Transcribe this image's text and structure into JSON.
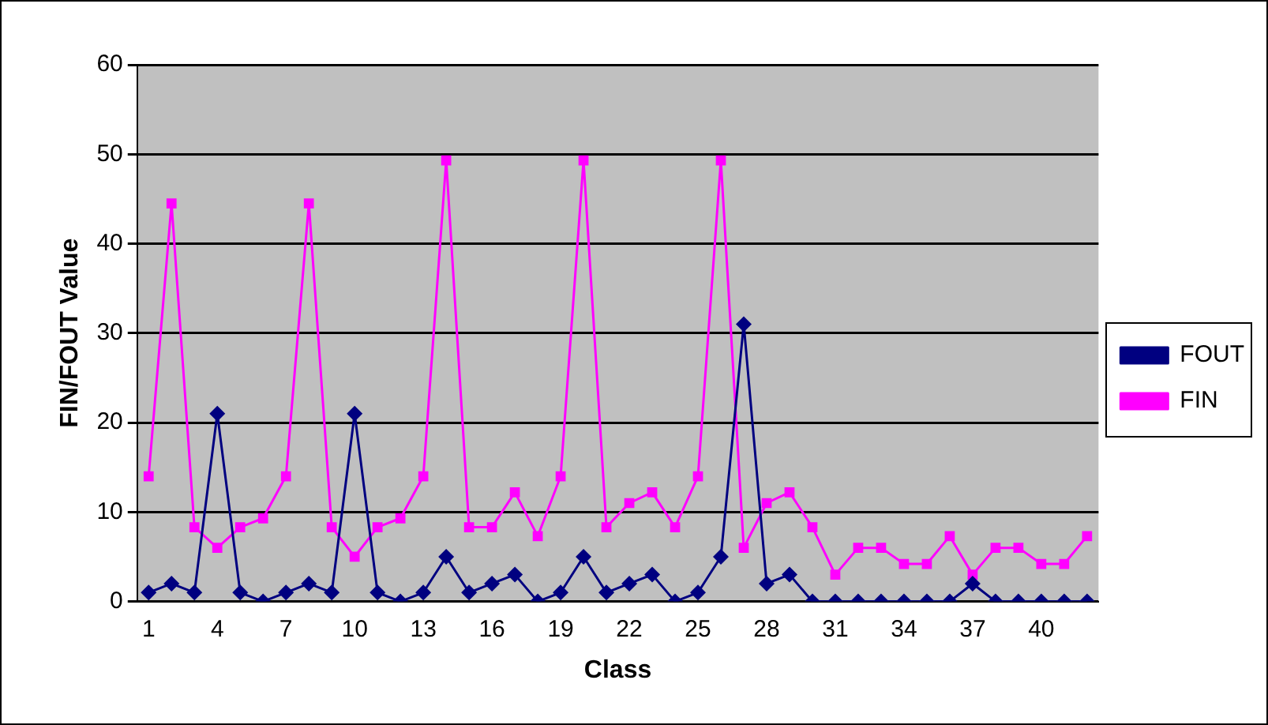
{
  "chart_data": {
    "type": "line",
    "xlabel": "Class",
    "ylabel": "FIN/FOUT Value",
    "categories": [
      "1",
      null,
      null,
      "4",
      null,
      null,
      "7",
      null,
      null,
      "10",
      null,
      null,
      "13",
      null,
      null,
      "16",
      null,
      null,
      "19",
      null,
      null,
      "22",
      null,
      null,
      "25",
      null,
      null,
      "28",
      null,
      null,
      "31",
      null,
      null,
      "34",
      null,
      null,
      "37",
      null,
      null,
      "40",
      null,
      null
    ],
    "series": [
      {
        "name": "FOUT",
        "color": "#000080",
        "marker": "diamond",
        "values": [
          1,
          2,
          1,
          21,
          1,
          0,
          1,
          2,
          1,
          21,
          1,
          0,
          1,
          5,
          1,
          2,
          3,
          0,
          1,
          5,
          1,
          2,
          3,
          0,
          1,
          5,
          31,
          2,
          3,
          0,
          0,
          0,
          0,
          0,
          0,
          0,
          2,
          0,
          0,
          0,
          0,
          0
        ]
      },
      {
        "name": "FIN",
        "color": "#ff00ff",
        "marker": "square",
        "values": [
          14,
          44.5,
          8.3,
          6,
          8.3,
          9.3,
          14,
          44.5,
          8.3,
          5,
          8.3,
          9.3,
          14,
          49.3,
          8.3,
          8.3,
          12.2,
          7.3,
          14,
          49.3,
          8.3,
          11,
          12.2,
          8.3,
          14,
          49.3,
          6,
          11,
          12.2,
          8.3,
          3,
          6,
          6,
          4.2,
          4.2,
          7.3,
          3,
          6,
          6,
          4.2,
          4.2,
          7.3
        ]
      }
    ],
    "ylim": [
      0,
      60
    ],
    "yticks": [
      0,
      10,
      20,
      30,
      40,
      50,
      60
    ],
    "grid": "y",
    "legend": "right",
    "line_style": "solid"
  }
}
